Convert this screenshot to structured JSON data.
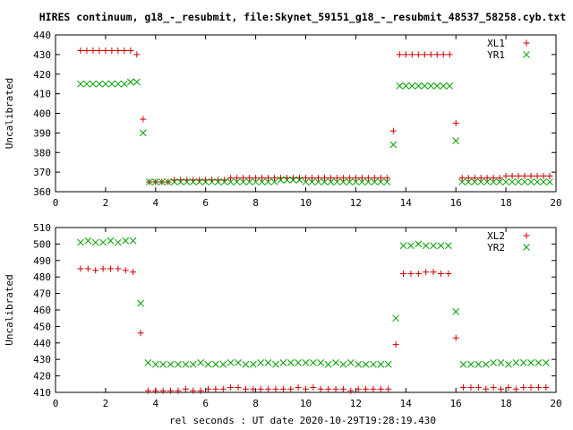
{
  "title": "HIRES continuum, g18_-_resubmit, file:Skynet_59151_g18_-_resubmit_48537_58258.cyb.txt",
  "xlabel": "rel seconds : UT date 2020-10-29T19:28:19.430",
  "colors": {
    "xl": "#cc0000",
    "yr": "#00a000"
  },
  "chart_data": [
    {
      "type": "scatter",
      "ylabel": "Uncalibrated",
      "xlim": [
        0,
        20
      ],
      "ylim": [
        360,
        440
      ],
      "xticks": [
        0,
        2,
        4,
        6,
        8,
        10,
        12,
        14,
        16,
        18,
        20
      ],
      "yticks": [
        360,
        370,
        380,
        390,
        400,
        410,
        420,
        430,
        440
      ],
      "grid": false,
      "legend": "top-right",
      "series": [
        {
          "name": "XL1",
          "marker": "plus",
          "color": "#cc0000",
          "x": [
            1.0,
            1.25,
            1.5,
            1.75,
            2.0,
            2.25,
            2.5,
            2.75,
            3.0,
            3.25,
            3.5,
            3.75,
            4.0,
            4.25,
            4.5,
            4.75,
            5.0,
            5.25,
            5.5,
            5.75,
            6.0,
            6.25,
            6.5,
            6.75,
            7.0,
            7.25,
            7.5,
            7.75,
            8.0,
            8.25,
            8.5,
            8.75,
            9.0,
            9.25,
            9.5,
            9.75,
            10.0,
            10.25,
            10.5,
            10.75,
            11.0,
            11.25,
            11.5,
            11.75,
            12.0,
            12.25,
            12.5,
            12.75,
            13.0,
            13.25,
            13.5,
            13.75,
            14.0,
            14.25,
            14.5,
            14.75,
            15.0,
            15.25,
            15.5,
            15.75,
            16.0,
            16.25,
            16.5,
            16.75,
            17.0,
            17.25,
            17.5,
            17.75,
            18.0,
            18.25,
            18.5,
            18.75,
            19.0,
            19.25,
            19.5,
            19.75
          ],
          "y": [
            432,
            432,
            432,
            432,
            432,
            432,
            432,
            432,
            432,
            430,
            397,
            365,
            365,
            365,
            365,
            366,
            366,
            366,
            366,
            366,
            366,
            366,
            366,
            366,
            367,
            367,
            367,
            367,
            367,
            367,
            367,
            367,
            367,
            367,
            367,
            367,
            367,
            367,
            367,
            367,
            367,
            367,
            367,
            367,
            367,
            367,
            367,
            367,
            367,
            367,
            391,
            430,
            430,
            430,
            430,
            430,
            430,
            430,
            430,
            430,
            395,
            367,
            367,
            367,
            367,
            367,
            367,
            367,
            368,
            368,
            368,
            368,
            368,
            368,
            368,
            368
          ]
        },
        {
          "name": "YR1",
          "marker": "cross",
          "color": "#00a000",
          "x": [
            1.0,
            1.25,
            1.5,
            1.75,
            2.0,
            2.25,
            2.5,
            2.75,
            3.0,
            3.25,
            3.5,
            3.75,
            4.0,
            4.25,
            4.5,
            4.75,
            5.0,
            5.25,
            5.5,
            5.75,
            6.0,
            6.25,
            6.5,
            6.75,
            7.0,
            7.25,
            7.5,
            7.75,
            8.0,
            8.25,
            8.5,
            8.75,
            9.0,
            9.25,
            9.5,
            9.75,
            10.0,
            10.25,
            10.5,
            10.75,
            11.0,
            11.25,
            11.5,
            11.75,
            12.0,
            12.25,
            12.5,
            12.75,
            13.0,
            13.25,
            13.5,
            13.75,
            14.0,
            14.25,
            14.5,
            14.75,
            15.0,
            15.25,
            15.5,
            15.75,
            16.0,
            16.25,
            16.5,
            16.75,
            17.0,
            17.25,
            17.5,
            17.75,
            18.0,
            18.25,
            18.5,
            18.75,
            19.0,
            19.25,
            19.5,
            19.75
          ],
          "y": [
            415,
            415,
            415,
            415,
            415,
            415,
            415,
            415,
            416,
            416,
            390,
            365,
            365,
            365,
            365,
            365,
            365,
            365,
            365,
            365,
            365,
            365,
            365,
            365,
            365,
            365,
            365,
            365,
            365,
            365,
            365,
            365,
            366,
            366,
            366,
            366,
            365,
            365,
            365,
            365,
            365,
            365,
            365,
            365,
            365,
            365,
            365,
            365,
            365,
            365,
            384,
            414,
            414,
            414,
            414,
            414,
            414,
            414,
            414,
            414,
            386,
            365,
            365,
            365,
            365,
            365,
            365,
            365,
            365,
            365,
            365,
            365,
            365,
            365,
            365,
            365
          ]
        }
      ]
    },
    {
      "type": "scatter",
      "ylabel": "Uncalibrated",
      "xlim": [
        0,
        20
      ],
      "ylim": [
        410,
        510
      ],
      "xticks": [
        0,
        2,
        4,
        6,
        8,
        10,
        12,
        14,
        16,
        18,
        20
      ],
      "yticks": [
        410,
        420,
        430,
        440,
        450,
        460,
        470,
        480,
        490,
        500,
        510
      ],
      "grid": false,
      "legend": "top-right",
      "series": [
        {
          "name": "XL2",
          "marker": "plus",
          "color": "#cc0000",
          "x": [
            1.0,
            1.3,
            1.6,
            1.9,
            2.2,
            2.5,
            2.8,
            3.1,
            3.4,
            3.7,
            4.0,
            4.3,
            4.6,
            4.9,
            5.2,
            5.5,
            5.8,
            6.1,
            6.4,
            6.7,
            7.0,
            7.3,
            7.6,
            7.9,
            8.2,
            8.5,
            8.8,
            9.1,
            9.4,
            9.7,
            10.0,
            10.3,
            10.6,
            10.9,
            11.2,
            11.5,
            11.8,
            12.1,
            12.4,
            12.7,
            13.0,
            13.3,
            13.6,
            13.9,
            14.2,
            14.5,
            14.8,
            15.1,
            15.4,
            15.7,
            16.0,
            16.3,
            16.6,
            16.9,
            17.2,
            17.5,
            17.8,
            18.1,
            18.4,
            18.7,
            19.0,
            19.3,
            19.6
          ],
          "y": [
            485,
            485,
            484,
            485,
            485,
            485,
            484,
            483,
            446,
            411,
            411,
            411,
            411,
            411,
            412,
            411,
            411,
            412,
            412,
            412,
            413,
            413,
            412,
            412,
            412,
            412,
            412,
            412,
            412,
            413,
            412,
            413,
            412,
            412,
            412,
            412,
            411,
            412,
            412,
            412,
            412,
            412,
            439,
            482,
            482,
            482,
            483,
            483,
            482,
            482,
            443,
            413,
            413,
            413,
            412,
            413,
            412,
            413,
            412,
            413,
            413,
            413,
            413
          ]
        },
        {
          "name": "YR2",
          "marker": "cross",
          "color": "#00a000",
          "x": [
            1.0,
            1.3,
            1.6,
            1.9,
            2.2,
            2.5,
            2.8,
            3.1,
            3.4,
            3.7,
            4.0,
            4.3,
            4.6,
            4.9,
            5.2,
            5.5,
            5.8,
            6.1,
            6.4,
            6.7,
            7.0,
            7.3,
            7.6,
            7.9,
            8.2,
            8.5,
            8.8,
            9.1,
            9.4,
            9.7,
            10.0,
            10.3,
            10.6,
            10.9,
            11.2,
            11.5,
            11.8,
            12.1,
            12.4,
            12.7,
            13.0,
            13.3,
            13.6,
            13.9,
            14.2,
            14.5,
            14.8,
            15.1,
            15.4,
            15.7,
            16.0,
            16.3,
            16.6,
            16.9,
            17.2,
            17.5,
            17.8,
            18.1,
            18.4,
            18.7,
            19.0,
            19.3,
            19.6
          ],
          "y": [
            501,
            502,
            501,
            501,
            502,
            501,
            502,
            502,
            464,
            428,
            427,
            427,
            427,
            427,
            427,
            427,
            428,
            427,
            427,
            427,
            428,
            428,
            427,
            427,
            428,
            428,
            427,
            428,
            428,
            428,
            428,
            428,
            428,
            427,
            428,
            427,
            428,
            427,
            427,
            427,
            427,
            427,
            455,
            499,
            499,
            500,
            499,
            499,
            499,
            499,
            459,
            427,
            427,
            427,
            427,
            428,
            428,
            427,
            428,
            428,
            428,
            428,
            428
          ]
        }
      ]
    }
  ]
}
